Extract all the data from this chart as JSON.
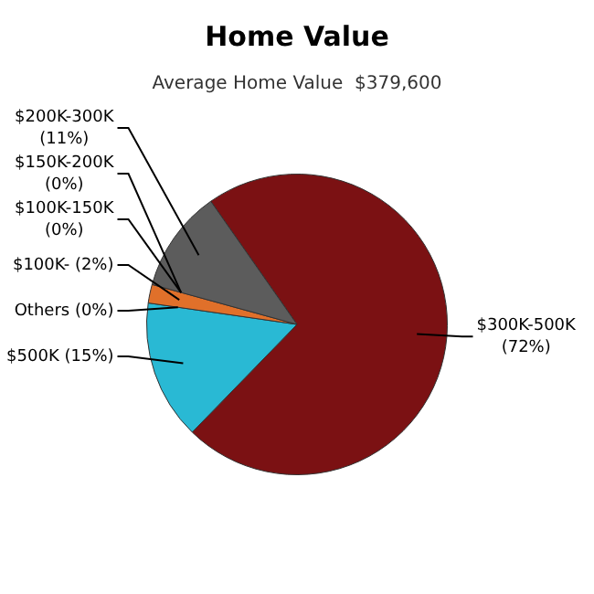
{
  "chart_data": {
    "type": "pie",
    "title": "Home Value",
    "subtitle": "Average Home Value  $379,600",
    "categories": [
      "$300K-500K",
      "$500K",
      "Others",
      "$100K-",
      "$150K-200K",
      "$100K-150K",
      "$200K-300K"
    ],
    "values": [
      72,
      15,
      0,
      2,
      0,
      0,
      11
    ],
    "colors": [
      "#7b1113",
      "#29b9d4",
      "#b0b0b0",
      "#e0702a",
      "#4a7ab0",
      "#8aa03a",
      "#5c5c5c"
    ],
    "value_labels": [
      "(72%)",
      "(15%)",
      "(0%)",
      "(2%)",
      "(0%)",
      "(0%)",
      "(11%)"
    ]
  }
}
